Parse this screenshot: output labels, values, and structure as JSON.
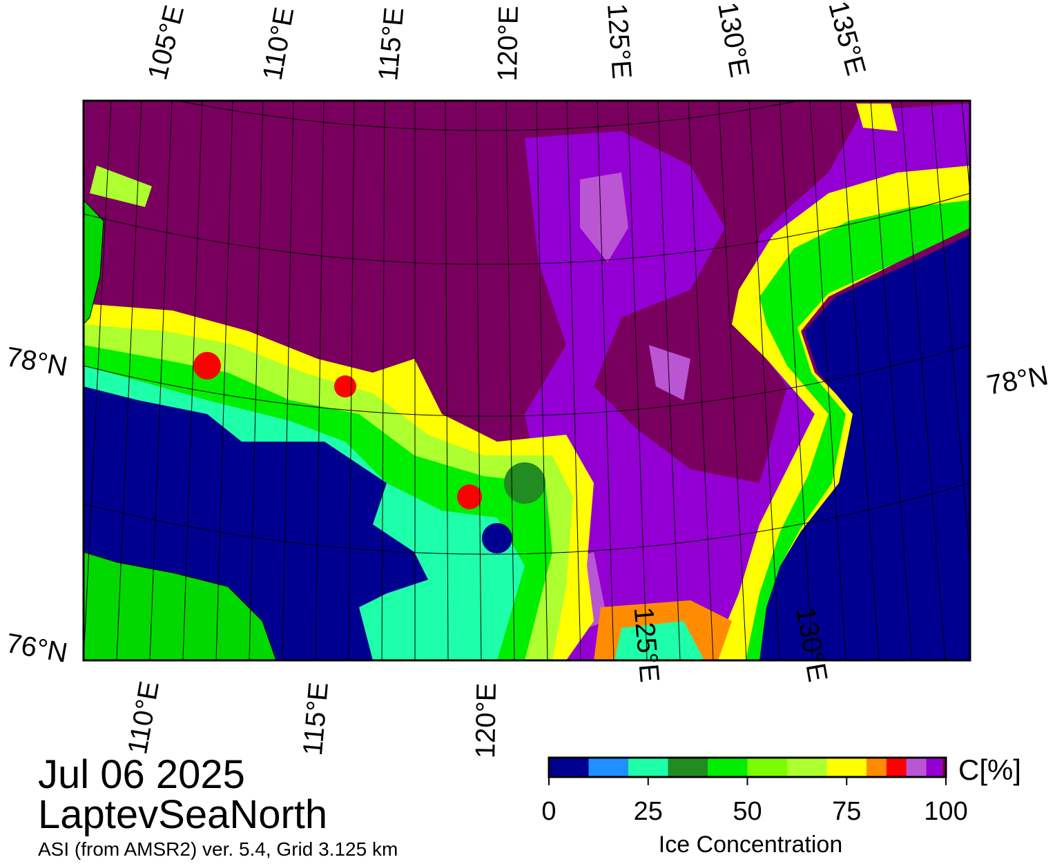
{
  "map": {
    "top_lon_labels": [
      "105°E",
      "110°E",
      "115°E",
      "120°E",
      "125°E",
      "130°E",
      "135°E"
    ],
    "bottom_lon_labels": [
      "110°E",
      "115°E",
      "120°E",
      "125°E",
      "130°E"
    ],
    "lat_labels_left": [
      "78°N",
      "76°N"
    ],
    "lat_labels_right": [
      "78°N"
    ],
    "date": "Jul 06 2025",
    "region": "LaptevSeaNorth",
    "subtitle": "ASI (from AMSR2) ver. 5.4,  Grid 3.125 km"
  },
  "colorbar": {
    "bins": [
      0,
      10,
      20,
      30,
      40,
      50,
      60,
      70,
      80,
      85,
      90,
      95,
      99,
      100
    ],
    "colors": [
      "#000090",
      "#1e90ff",
      "#1effaa",
      "#228b22",
      "#00ee00",
      "#7cfc00",
      "#adff2f",
      "#ffff00",
      "#ff8c00",
      "#ff0000",
      "#ba55d3",
      "#9400d3",
      "#7a005f"
    ],
    "ticks": [
      0,
      25,
      50,
      75,
      100
    ],
    "unit_label": "C[%]",
    "label": "Ice Concentration"
  }
}
